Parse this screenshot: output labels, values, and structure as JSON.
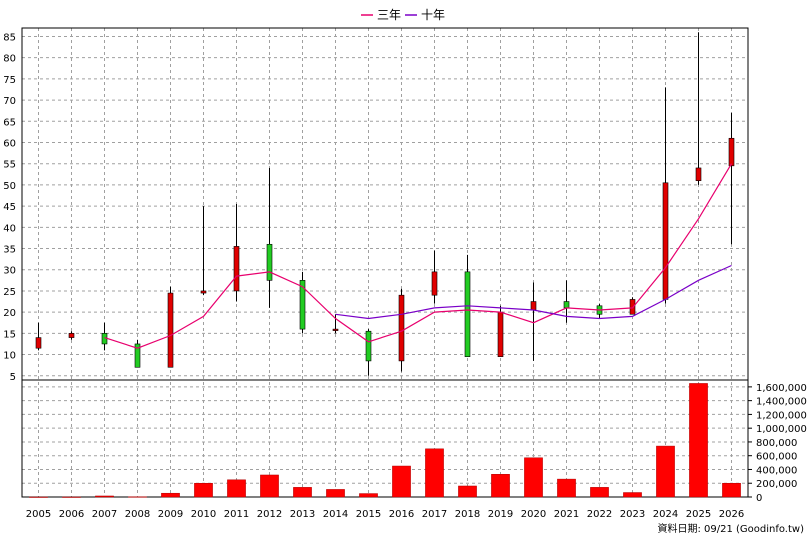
{
  "chart_data": {
    "type": "candlestick",
    "legend": [
      {
        "label": "三年",
        "color": "#e8006e"
      },
      {
        "label": "十年",
        "color": "#7a00c8"
      }
    ],
    "legend_placement": "top-center",
    "grid": true,
    "source_note": "資料日期: 09/21 (Goodinfo.tw)",
    "categories": [
      "2005",
      "2006",
      "2007",
      "2008",
      "2009",
      "2010",
      "2011",
      "2012",
      "2013",
      "2014",
      "2015",
      "2016",
      "2017",
      "2018",
      "2019",
      "2020",
      "2021",
      "2022",
      "2023",
      "2024",
      "2025",
      "2026"
    ],
    "price_axis": {
      "ylim": [
        4,
        87
      ],
      "ticks": [
        5,
        10,
        15,
        20,
        25,
        30,
        35,
        40,
        45,
        50,
        55,
        60,
        65,
        70,
        75,
        80,
        85
      ]
    },
    "volume_axis": {
      "ylim": [
        0,
        1700000
      ],
      "ticks": [
        0,
        200000,
        400000,
        600000,
        800000,
        1000000,
        1200000,
        1400000,
        1600000
      ],
      "tick_labels": [
        "0",
        "200,000",
        "400,000",
        "600,000",
        "800,000",
        "1,000,000",
        "1,200,000",
        "1,400,000",
        "1,600,000"
      ]
    },
    "candles": [
      {
        "open": 11.5,
        "close": 14.0,
        "high": 17.5,
        "low": 11.0,
        "color": "#e00000"
      },
      {
        "open": 14.0,
        "close": 15.0,
        "high": 15.5,
        "low": 13.5,
        "color": "#e00000"
      },
      {
        "open": 15.0,
        "close": 12.5,
        "high": 17.5,
        "low": 11.0,
        "color": "#22cc22"
      },
      {
        "open": 12.5,
        "close": 7.0,
        "high": 13.5,
        "low": 7.0,
        "color": "#22cc22"
      },
      {
        "open": 7.0,
        "close": 24.5,
        "high": 26.0,
        "low": 7.0,
        "color": "#e00000"
      },
      {
        "open": 24.5,
        "close": 25.0,
        "high": 45.0,
        "low": 24.0,
        "color": "#e00000"
      },
      {
        "open": 25.0,
        "close": 35.5,
        "high": 45.5,
        "low": 22.5,
        "color": "#e00000"
      },
      {
        "open": 36.0,
        "close": 27.5,
        "high": 54.0,
        "low": 21.0,
        "color": "#22cc22"
      },
      {
        "open": 27.5,
        "close": 16.0,
        "high": 29.5,
        "low": 15.0,
        "color": "#22cc22"
      },
      {
        "open": 16.0,
        "close": 16.0,
        "high": 19.5,
        "low": 15.0,
        "color": "#e00000"
      },
      {
        "open": 15.5,
        "close": 8.5,
        "high": 16.0,
        "low": 5.0,
        "color": "#22cc22"
      },
      {
        "open": 8.5,
        "close": 24.0,
        "high": 25.5,
        "low": 6.0,
        "color": "#e00000"
      },
      {
        "open": 24.0,
        "close": 29.5,
        "high": 34.5,
        "low": 22.0,
        "color": "#e00000"
      },
      {
        "open": 29.5,
        "close": 9.5,
        "high": 33.5,
        "low": 9.5,
        "color": "#22cc22"
      },
      {
        "open": 9.5,
        "close": 20.0,
        "high": 21.5,
        "low": 9.5,
        "color": "#e00000"
      },
      {
        "open": 20.5,
        "close": 22.5,
        "high": 27.0,
        "low": 8.5,
        "color": "#e00000"
      },
      {
        "open": 22.5,
        "close": 21.0,
        "high": 27.5,
        "low": 17.5,
        "color": "#22cc22"
      },
      {
        "open": 21.5,
        "close": 19.5,
        "high": 22.0,
        "low": 18.5,
        "color": "#22cc22"
      },
      {
        "open": 19.5,
        "close": 23.0,
        "high": 23.5,
        "low": 19.5,
        "color": "#e00000"
      },
      {
        "open": 23.0,
        "close": 50.5,
        "high": 73.0,
        "low": 22.0,
        "color": "#e00000"
      },
      {
        "open": 51.0,
        "close": 54.0,
        "high": 86.0,
        "low": 50.0,
        "color": "#e00000"
      },
      {
        "open": 54.5,
        "close": 61.0,
        "high": 67.0,
        "low": 36.0,
        "color": "#e00000"
      }
    ],
    "series": [
      {
        "name": "三年",
        "color": "#e8006e",
        "values": [
          null,
          null,
          14.0,
          11.5,
          14.5,
          19.0,
          28.5,
          29.5,
          26.0,
          18.5,
          13.0,
          15.5,
          20.0,
          20.5,
          20.0,
          17.5,
          21.0,
          20.5,
          21.0,
          30.5,
          42.0,
          55.0
        ]
      },
      {
        "name": "十年",
        "color": "#7a00c8",
        "values": [
          null,
          null,
          null,
          null,
          null,
          null,
          null,
          null,
          null,
          19.5,
          18.5,
          19.5,
          21.0,
          21.5,
          21.0,
          20.5,
          19.0,
          18.5,
          19.0,
          23.0,
          27.5,
          31.0
        ]
      }
    ],
    "volume": [
      0,
      0,
      15000,
      3000,
      55000,
      200000,
      250000,
      320000,
      140000,
      110000,
      50000,
      450000,
      700000,
      160000,
      330000,
      570000,
      260000,
      140000,
      65000,
      740000,
      1650000,
      200000
    ],
    "volume_color": "#ff0000"
  }
}
